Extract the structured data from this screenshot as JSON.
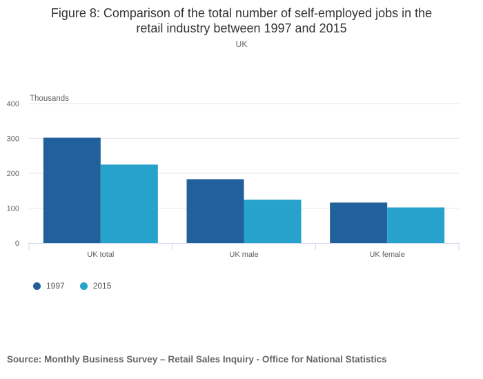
{
  "chart_data": {
    "type": "bar",
    "title_line1": "Figure 8: Comparison of the total number of self-employed jobs in the",
    "title_line2": "retail industry between 1997 and 2015",
    "subtitle": "UK",
    "ylabel": "Thousands",
    "xlabel": "",
    "categories": [
      "UK total",
      "UK male",
      "UK female"
    ],
    "series": [
      {
        "name": "1997",
        "color": "#21609a",
        "values": [
          302,
          183,
          116
        ]
      },
      {
        "name": "2015",
        "color": "#27a2cd",
        "values": [
          225,
          124,
          102
        ]
      }
    ],
    "ylim": [
      0,
      400
    ],
    "yticks": [
      0,
      100,
      200,
      300,
      400
    ],
    "grid": true,
    "legend_position": "bottom-left",
    "source": "Source: Monthly Business Survey – Retail Sales Inquiry - Office for National Statistics"
  }
}
